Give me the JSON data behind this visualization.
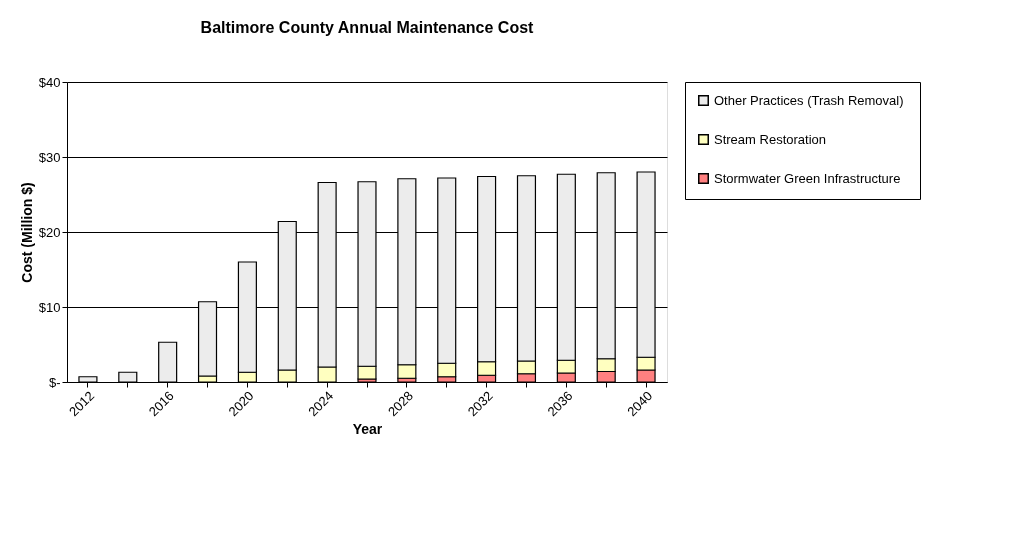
{
  "chart_data": {
    "type": "bar",
    "title": "Baltimore County Annual Maintenance Cost",
    "xlabel": "Year",
    "ylabel": "Cost (Million $)",
    "categories": [
      "2012",
      null,
      "2016",
      null,
      "2020",
      null,
      "2024",
      null,
      "2028",
      null,
      "2032",
      null,
      "2036",
      null,
      "2040"
    ],
    "stacked": true,
    "series": [
      {
        "name": "Stormwater Green Infrastructure",
        "color": "#ff8080",
        "values": [
          0,
          0,
          0,
          0,
          0,
          0,
          0,
          0.4,
          0.5,
          0.7,
          0.9,
          1.1,
          1.2,
          1.4,
          1.6
        ]
      },
      {
        "name": "Stream Restoration",
        "color": "#ffffc0",
        "values": [
          0,
          0,
          0,
          0.8,
          1.3,
          1.6,
          2.0,
          1.7,
          1.8,
          1.8,
          1.8,
          1.7,
          1.7,
          1.7,
          1.7
        ]
      },
      {
        "name": "Other Practices  (Trash Removal)",
        "color": "#ececec",
        "values": [
          0.7,
          1.3,
          5.3,
          9.9,
          14.7,
          19.8,
          24.6,
          24.6,
          24.8,
          24.7,
          24.7,
          24.7,
          24.8,
          24.8,
          24.7
        ]
      }
    ],
    "ylim": [
      0,
      40
    ],
    "yticks": [
      {
        "value": 0,
        "label": "$-"
      },
      {
        "value": 10,
        "label": "$10"
      },
      {
        "value": 20,
        "label": "$20"
      },
      {
        "value": 30,
        "label": "$30"
      },
      {
        "value": 40,
        "label": "$40"
      }
    ],
    "grid": "y",
    "legend": "right"
  }
}
